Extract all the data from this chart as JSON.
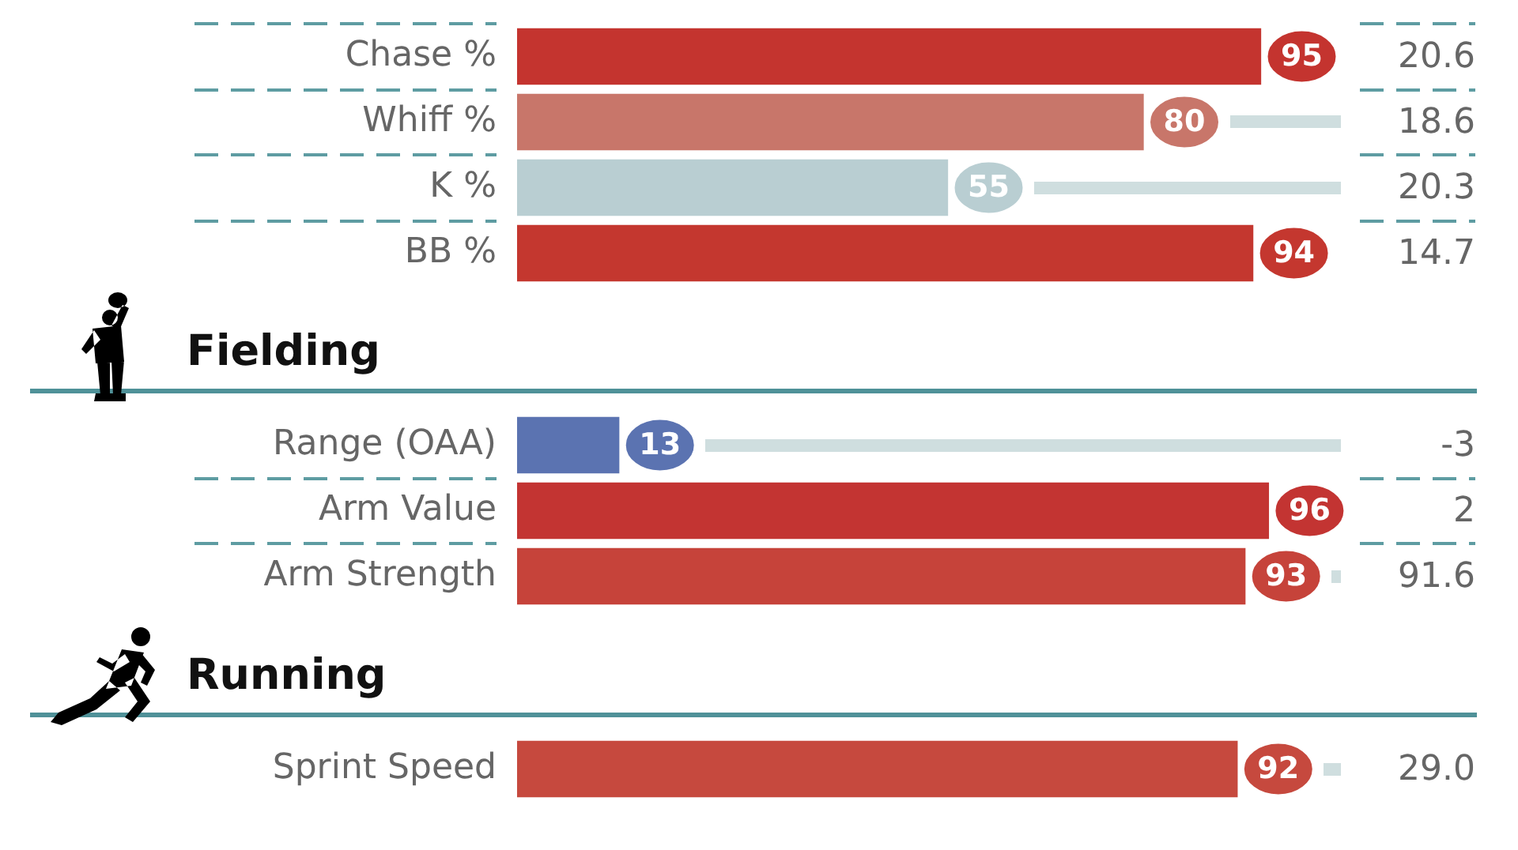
{
  "chart_data": [
    {
      "type": "bar",
      "orientation": "horizontal",
      "categories": [
        "Chase %",
        "Whiff %",
        "K %",
        "BB %"
      ],
      "values": [
        95,
        80,
        55,
        94
      ],
      "colors": [
        "#c4342f",
        "#c8766a",
        "#b9ced2",
        "#c4372f"
      ],
      "tick_labels": "y",
      "data_labels": true,
      "annotations": [
        "20.6",
        "18.6",
        "20.3",
        "14.7"
      ]
    },
    {
      "type": "bar",
      "title": "Fielding",
      "orientation": "horizontal",
      "categories": [
        "Range (OAA)",
        "Arm Value",
        "Arm Strength"
      ],
      "values": [
        13,
        96,
        93
      ],
      "colors": [
        "#5b73b1",
        "#c33432",
        "#c6433a"
      ],
      "tick_labels": "y",
      "data_labels": true,
      "annotations": [
        "-3",
        "2",
        "91.6"
      ]
    },
    {
      "type": "bar",
      "title": "Running",
      "orientation": "horizontal",
      "categories": [
        "Sprint Speed"
      ],
      "values": [
        92
      ],
      "colors": [
        "#c6493e"
      ],
      "tick_labels": "y",
      "data_labels": true,
      "annotations": [
        "29.0"
      ]
    }
  ]
}
